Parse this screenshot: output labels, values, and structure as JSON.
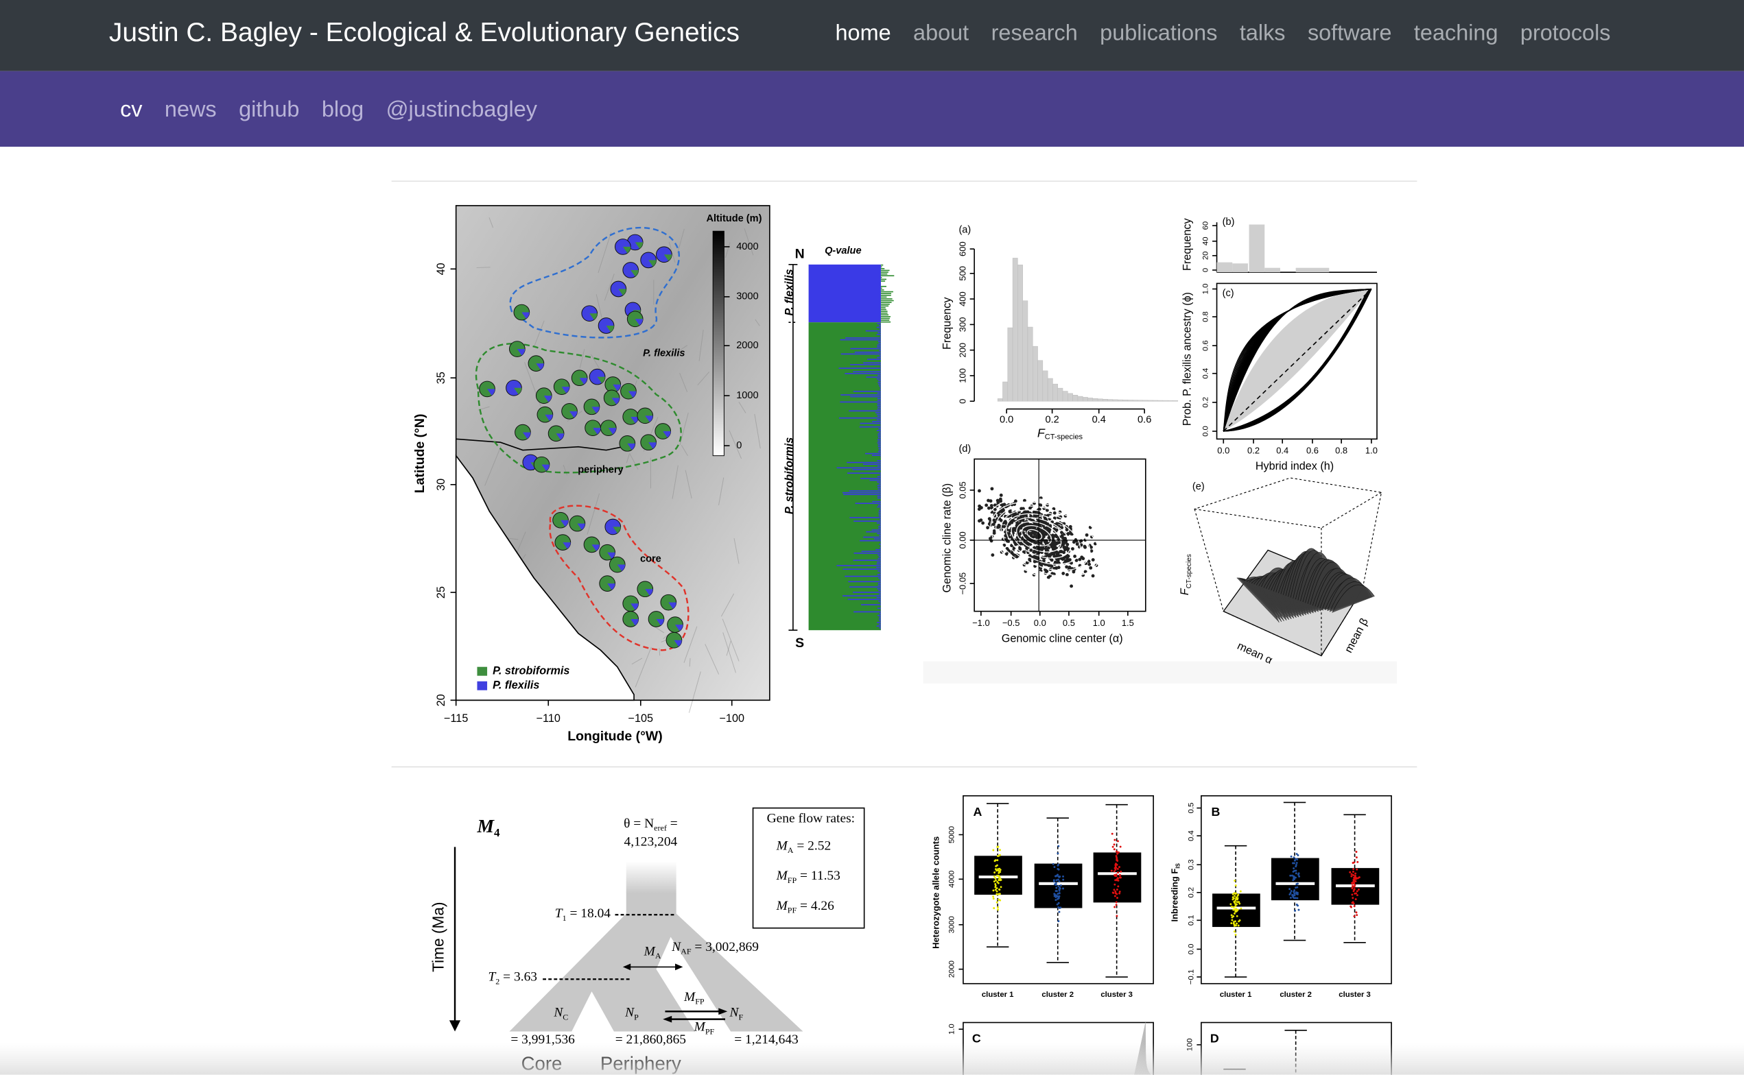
{
  "header": {
    "title": "Justin C. Bagley - Ecological & Evolutionary Genetics",
    "nav": [
      "home",
      "about",
      "research",
      "publications",
      "talks",
      "software",
      "teaching",
      "protocols"
    ],
    "active_index": 0
  },
  "subnav": {
    "links": [
      "cv",
      "news",
      "github",
      "blog",
      "@justincbagley"
    ],
    "active_index": 0
  },
  "figure_1": {
    "map": {
      "y_axis": "Latitude (°N)",
      "x_axis": "Longitude (°W)",
      "y_ticks": [
        "40",
        "35",
        "30",
        "25",
        "20"
      ],
      "x_ticks": [
        "−115",
        "−110",
        "−105",
        "−100"
      ],
      "altitude_title": "Altitude (m)",
      "altitude_ticks": [
        "4000",
        "3000",
        "2000",
        "1000",
        "0"
      ],
      "region_flexilis": "P. flexilis",
      "region_periphery": "periphery",
      "region_core": "core",
      "legend": [
        "P. strobiformis",
        "P. flexilis"
      ]
    },
    "structure": {
      "title": "Q-value",
      "north": "N",
      "south": "S",
      "groups": [
        "P. flexilis",
        "P. strobiformis"
      ]
    },
    "panel_a": {
      "label": "(a)",
      "y_axis": "Frequency",
      "x_axis": {
        "main": "F",
        "sub": "CT-species"
      },
      "y_ticks": [
        "0",
        "100",
        "200",
        "300",
        "400",
        "500",
        "600"
      ],
      "x_ticks": [
        "0.0",
        "0.2",
        "0.4",
        "0.6"
      ]
    },
    "panel_b": {
      "label": "(b)",
      "y_axis": "Frequency",
      "y_ticks": [
        "0",
        "20",
        "40",
        "60"
      ]
    },
    "panel_c": {
      "label": "(c)",
      "y_axis": "Prob. P. flexilis ancestry (ϕ)",
      "x_axis": "Hybrid index (h)",
      "y_ticks": [
        "0.0",
        "0.2",
        "0.4",
        "0.6",
        "0.8",
        "1.0"
      ],
      "x_ticks": [
        "0.0",
        "0.2",
        "0.4",
        "0.6",
        "0.8",
        "1.0"
      ]
    },
    "panel_d": {
      "label": "(d)",
      "y_axis": "Genomic cline rate (β)",
      "x_axis": "Genomic cline center (α)",
      "y_ticks": [
        "0.05",
        "0.00",
        "−0.05"
      ],
      "x_ticks": [
        "−1.0",
        "−0.5",
        "0.0",
        "0.5",
        "1.0",
        "1.5"
      ]
    },
    "panel_e": {
      "label": "(e)",
      "z_axis": {
        "main": "F",
        "sub": "CT-species"
      },
      "x_axis": "mean α",
      "y_axis": "mean β"
    }
  },
  "figure_2": {
    "model": {
      "name": {
        "main": "M",
        "sub": "4"
      },
      "time_axis": "Time (Ma)",
      "theta": {
        "main": "θ = N",
        "sub": "eref",
        "rest": " ="
      },
      "theta_value": "4,123,204",
      "t1": {
        "main": "T",
        "sub": "1",
        "rest": " = 18.04"
      },
      "t2": {
        "main": "T",
        "sub": "2",
        "rest": " = 3.63"
      },
      "n_af": {
        "main": "N",
        "sub": "AF",
        "rest": " = 3,002,869"
      },
      "m_a": {
        "main": "M",
        "sub": "A"
      },
      "m_fp": {
        "main": "M",
        "sub": "FP"
      },
      "m_pf": {
        "main": "M",
        "sub": "PF"
      },
      "n_c": {
        "main": "N",
        "sub": "C"
      },
      "n_p": {
        "main": "N",
        "sub": "P"
      },
      "n_f": {
        "main": "N",
        "sub": "F"
      },
      "n_c_value": "= 3,991,536",
      "n_p_value": "= 21,860,865",
      "n_f_value": "= 1,214,643",
      "core": "Core",
      "periphery": "Periphery",
      "gene_flow_title": "Gene flow rates:",
      "gene_flow": [
        {
          "main": "M",
          "sub": "A",
          "rest": " = 2.52"
        },
        {
          "main": "M",
          "sub": "FP",
          "rest": " = 11.53"
        },
        {
          "main": "M",
          "sub": "PF",
          "rest": " = 4.26"
        }
      ]
    },
    "boxplots": [
      {
        "label": "A",
        "y_axis": "Heterozygote allele counts",
        "y_ticks": [
          "2000",
          "3000",
          "4000",
          "5000"
        ],
        "categories": [
          "cluster 1",
          "cluster 2",
          "cluster 3"
        ]
      },
      {
        "label": "B",
        "y_axis": {
          "main": "Inbreeding F",
          "sub": "IS"
        },
        "y_ticks": [
          "−0.1",
          "0.0",
          "0.1",
          "0.2",
          "0.3",
          "0.4",
          "0.5"
        ],
        "categories": [
          "cluster 1",
          "cluster 2",
          "cluster 3"
        ]
      },
      {
        "label": "C",
        "y_ticks": [
          "1.0"
        ]
      },
      {
        "label": "D",
        "y_ticks": [
          "100"
        ]
      }
    ]
  }
}
